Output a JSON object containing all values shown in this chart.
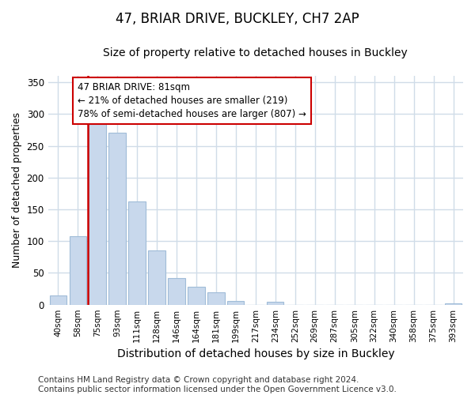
{
  "title": "47, BRIAR DRIVE, BUCKLEY, CH7 2AP",
  "subtitle": "Size of property relative to detached houses in Buckley",
  "xlabel": "Distribution of detached houses by size in Buckley",
  "ylabel": "Number of detached properties",
  "categories": [
    "40sqm",
    "58sqm",
    "75sqm",
    "93sqm",
    "111sqm",
    "128sqm",
    "146sqm",
    "164sqm",
    "181sqm",
    "199sqm",
    "217sqm",
    "234sqm",
    "252sqm",
    "269sqm",
    "287sqm",
    "305sqm",
    "322sqm",
    "340sqm",
    "358sqm",
    "375sqm",
    "393sqm"
  ],
  "values": [
    15,
    108,
    293,
    270,
    163,
    85,
    42,
    28,
    20,
    6,
    0,
    5,
    0,
    0,
    0,
    0,
    0,
    0,
    0,
    0,
    2
  ],
  "bar_color": "#c8d8ec",
  "bar_edge_color": "#a0bcd8",
  "vline_color": "#cc0000",
  "vline_index": 2,
  "annotation_text": "47 BRIAR DRIVE: 81sqm\n← 21% of detached houses are smaller (219)\n78% of semi-detached houses are larger (807) →",
  "annotation_box_color": "#ffffff",
  "annotation_box_edge": "#cc0000",
  "ylim": [
    0,
    360
  ],
  "yticks": [
    0,
    50,
    100,
    150,
    200,
    250,
    300,
    350
  ],
  "bg_color": "#ffffff",
  "plot_bg_color": "#ffffff",
  "grid_color": "#d0dce8",
  "footer": "Contains HM Land Registry data © Crown copyright and database right 2024.\nContains public sector information licensed under the Open Government Licence v3.0.",
  "title_fontsize": 12,
  "subtitle_fontsize": 10,
  "xlabel_fontsize": 10,
  "ylabel_fontsize": 9,
  "annotation_fontsize": 8.5,
  "footer_fontsize": 7.5
}
